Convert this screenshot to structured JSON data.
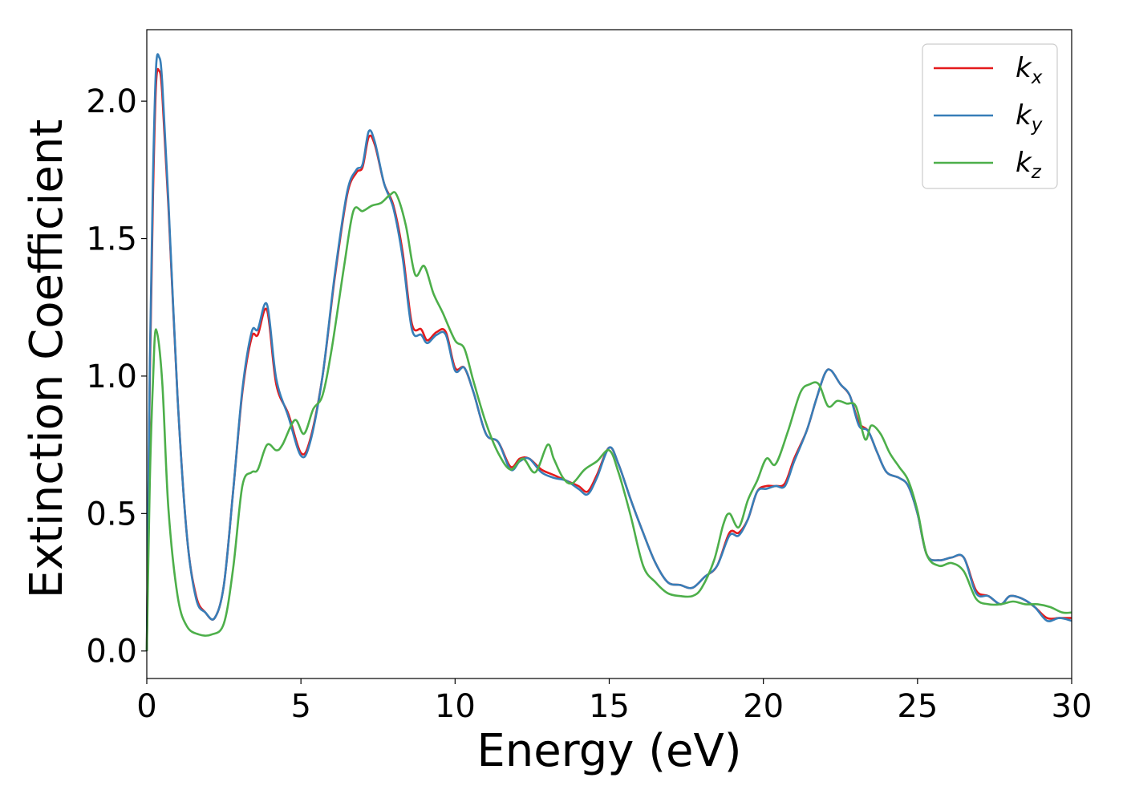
{
  "chart_data": {
    "type": "line",
    "xlabel": "Energy (eV)",
    "ylabel": "Extinction Coefficient",
    "xlim": [
      0,
      30
    ],
    "ylim": [
      -0.1,
      2.26
    ],
    "xticks": [
      "0",
      "5",
      "10",
      "15",
      "20",
      "25",
      "30"
    ],
    "yticks": [
      "0.0",
      "0.5",
      "1.0",
      "1.5",
      "2.0"
    ],
    "legend_position": "top-right",
    "grid": false,
    "series": [
      {
        "name": "k_x",
        "label_main": "k",
        "label_sub": "x",
        "color": "#e41a1c",
        "x": [
          0,
          0.1,
          0.2,
          0.3,
          0.4,
          0.5,
          0.7,
          1.0,
          1.3,
          1.6,
          1.9,
          2.2,
          2.5,
          2.8,
          3.1,
          3.4,
          3.6,
          3.9,
          4.2,
          4.6,
          5.0,
          5.3,
          5.7,
          6.1,
          6.5,
          6.8,
          7.0,
          7.2,
          7.4,
          7.7,
          8.0,
          8.3,
          8.6,
          8.9,
          9.1,
          9.4,
          9.7,
          10.0,
          10.3,
          10.6,
          11.0,
          11.4,
          11.8,
          12.1,
          12.4,
          12.8,
          13.2,
          13.6,
          14.0,
          14.3,
          14.6,
          15.0,
          15.3,
          15.7,
          16.1,
          16.5,
          16.9,
          17.3,
          17.7,
          18.1,
          18.5,
          18.9,
          19.2,
          19.5,
          19.8,
          20.1,
          20.4,
          20.7,
          21.0,
          21.4,
          21.7,
          22.0,
          22.2,
          22.5,
          22.8,
          23.1,
          23.4,
          23.7,
          24.0,
          24.4,
          24.7,
          25.0,
          25.3,
          25.7,
          26.1,
          26.5,
          26.9,
          27.3,
          27.7,
          28.0,
          28.4,
          28.8,
          29.2,
          29.6,
          30.0
        ],
        "values": [
          0.0,
          1.0,
          1.65,
          2.06,
          2.11,
          2.03,
          1.62,
          0.92,
          0.42,
          0.2,
          0.14,
          0.12,
          0.24,
          0.58,
          0.94,
          1.14,
          1.15,
          1.24,
          0.97,
          0.86,
          0.72,
          0.77,
          1.0,
          1.36,
          1.66,
          1.74,
          1.76,
          1.87,
          1.84,
          1.7,
          1.62,
          1.45,
          1.19,
          1.17,
          1.13,
          1.16,
          1.16,
          1.03,
          1.03,
          0.94,
          0.79,
          0.76,
          0.67,
          0.7,
          0.7,
          0.66,
          0.64,
          0.62,
          0.6,
          0.58,
          0.64,
          0.74,
          0.68,
          0.55,
          0.43,
          0.32,
          0.25,
          0.24,
          0.23,
          0.27,
          0.31,
          0.43,
          0.43,
          0.48,
          0.58,
          0.6,
          0.6,
          0.61,
          0.7,
          0.8,
          0.91,
          1.01,
          1.02,
          0.97,
          0.93,
          0.83,
          0.8,
          0.72,
          0.65,
          0.63,
          0.6,
          0.5,
          0.35,
          0.33,
          0.34,
          0.34,
          0.22,
          0.2,
          0.17,
          0.2,
          0.19,
          0.16,
          0.12,
          0.12,
          0.12
        ]
      },
      {
        "name": "k_y",
        "label_main": "k",
        "label_sub": "y",
        "color": "#377eb8",
        "x": [
          0,
          0.1,
          0.2,
          0.3,
          0.4,
          0.5,
          0.7,
          1.0,
          1.3,
          1.6,
          1.9,
          2.2,
          2.5,
          2.8,
          3.1,
          3.4,
          3.6,
          3.9,
          4.2,
          4.6,
          5.0,
          5.3,
          5.7,
          6.1,
          6.5,
          6.8,
          7.0,
          7.2,
          7.4,
          7.7,
          8.0,
          8.3,
          8.6,
          8.9,
          9.1,
          9.4,
          9.7,
          10.0,
          10.3,
          10.6,
          11.0,
          11.4,
          11.8,
          12.1,
          12.4,
          12.8,
          13.2,
          13.6,
          14.0,
          14.3,
          14.6,
          15.0,
          15.3,
          15.7,
          16.1,
          16.5,
          16.9,
          17.3,
          17.7,
          18.1,
          18.5,
          18.9,
          19.2,
          19.5,
          19.8,
          20.1,
          20.4,
          20.7,
          21.0,
          21.4,
          21.7,
          22.0,
          22.2,
          22.5,
          22.8,
          23.1,
          23.4,
          23.7,
          24.0,
          24.4,
          24.7,
          25.0,
          25.3,
          25.7,
          26.1,
          26.5,
          26.9,
          27.3,
          27.7,
          28.0,
          28.4,
          28.8,
          29.2,
          29.6,
          30.0
        ],
        "values": [
          0.0,
          1.05,
          1.72,
          2.12,
          2.16,
          2.07,
          1.64,
          0.92,
          0.42,
          0.19,
          0.14,
          0.12,
          0.24,
          0.58,
          0.95,
          1.16,
          1.17,
          1.26,
          0.99,
          0.85,
          0.71,
          0.76,
          1.0,
          1.37,
          1.67,
          1.75,
          1.77,
          1.89,
          1.85,
          1.7,
          1.61,
          1.43,
          1.17,
          1.15,
          1.12,
          1.15,
          1.15,
          1.02,
          1.03,
          0.94,
          0.79,
          0.76,
          0.66,
          0.69,
          0.7,
          0.65,
          0.63,
          0.62,
          0.59,
          0.57,
          0.63,
          0.74,
          0.68,
          0.55,
          0.43,
          0.32,
          0.25,
          0.24,
          0.23,
          0.27,
          0.31,
          0.42,
          0.42,
          0.48,
          0.58,
          0.59,
          0.6,
          0.6,
          0.69,
          0.8,
          0.91,
          1.01,
          1.02,
          0.97,
          0.93,
          0.82,
          0.8,
          0.72,
          0.65,
          0.63,
          0.6,
          0.5,
          0.35,
          0.33,
          0.34,
          0.34,
          0.21,
          0.2,
          0.17,
          0.2,
          0.19,
          0.16,
          0.11,
          0.12,
          0.11
        ]
      },
      {
        "name": "k_z",
        "label_main": "k",
        "label_sub": "z",
        "color": "#4daf4a",
        "x": [
          0,
          0.1,
          0.2,
          0.3,
          0.5,
          0.7,
          1.0,
          1.3,
          1.7,
          2.1,
          2.5,
          2.8,
          3.1,
          3.4,
          3.6,
          3.9,
          4.2,
          4.4,
          4.8,
          5.1,
          5.4,
          5.7,
          6.0,
          6.4,
          6.7,
          7.0,
          7.3,
          7.6,
          7.9,
          8.1,
          8.4,
          8.7,
          9.0,
          9.3,
          9.6,
          10.0,
          10.3,
          10.6,
          11.0,
          11.4,
          11.8,
          12.2,
          12.6,
          13.0,
          13.2,
          13.5,
          13.8,
          14.2,
          14.6,
          15.0,
          15.3,
          15.7,
          16.1,
          16.5,
          16.9,
          17.3,
          17.7,
          18.0,
          18.4,
          18.7,
          18.9,
          19.2,
          19.5,
          19.8,
          20.1,
          20.4,
          20.8,
          21.2,
          21.5,
          21.8,
          22.1,
          22.4,
          22.7,
          23.0,
          23.3,
          23.5,
          23.8,
          24.1,
          24.4,
          24.7,
          25.0,
          25.3,
          25.7,
          26.1,
          26.5,
          26.9,
          27.3,
          27.7,
          28.1,
          28.5,
          28.9,
          29.3,
          29.7,
          30.0
        ],
        "values": [
          0.0,
          0.62,
          0.98,
          1.17,
          0.98,
          0.52,
          0.2,
          0.09,
          0.06,
          0.06,
          0.1,
          0.3,
          0.6,
          0.65,
          0.66,
          0.75,
          0.73,
          0.75,
          0.84,
          0.79,
          0.88,
          0.93,
          1.1,
          1.4,
          1.6,
          1.6,
          1.62,
          1.63,
          1.66,
          1.66,
          1.55,
          1.37,
          1.4,
          1.3,
          1.23,
          1.13,
          1.1,
          0.98,
          0.83,
          0.72,
          0.66,
          0.7,
          0.65,
          0.75,
          0.7,
          0.63,
          0.61,
          0.66,
          0.69,
          0.73,
          0.65,
          0.49,
          0.31,
          0.25,
          0.21,
          0.2,
          0.2,
          0.23,
          0.33,
          0.46,
          0.5,
          0.45,
          0.55,
          0.62,
          0.7,
          0.68,
          0.8,
          0.94,
          0.97,
          0.97,
          0.89,
          0.91,
          0.9,
          0.89,
          0.77,
          0.82,
          0.79,
          0.72,
          0.67,
          0.62,
          0.51,
          0.35,
          0.31,
          0.32,
          0.29,
          0.19,
          0.17,
          0.17,
          0.18,
          0.17,
          0.17,
          0.16,
          0.14,
          0.14
        ]
      }
    ]
  }
}
